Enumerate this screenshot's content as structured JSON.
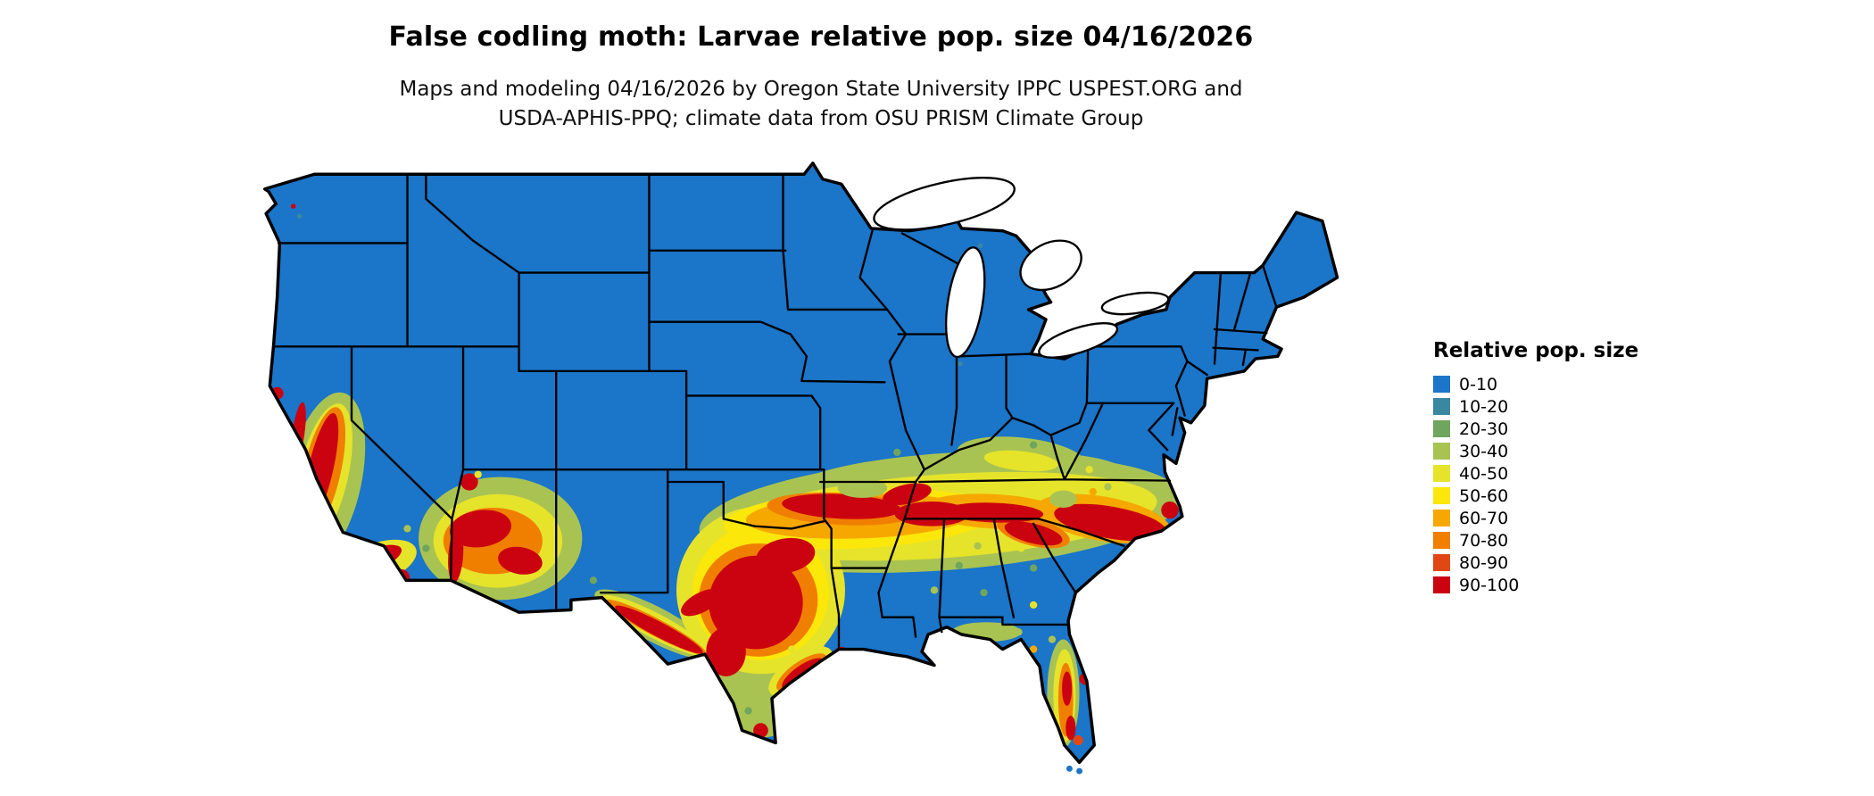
{
  "title": "False codling moth: Larvae relative pop. size 04/16/2026",
  "subtitle_line1": "Maps and modeling 04/16/2026 by Oregon State University IPPC USPEST.ORG and",
  "subtitle_line2": "USDA-APHIS-PPQ; climate data from OSU PRISM Climate Group",
  "legend": {
    "title": "Relative pop. size",
    "items": [
      {
        "label": "0-10",
        "color": "#1B75C8"
      },
      {
        "label": "10-20",
        "color": "#3A87A0"
      },
      {
        "label": "20-30",
        "color": "#6FA55E"
      },
      {
        "label": "30-40",
        "color": "#A9C352"
      },
      {
        "label": "40-50",
        "color": "#E6E32B"
      },
      {
        "label": "50-60",
        "color": "#FBE70A"
      },
      {
        "label": "60-70",
        "color": "#F6A800"
      },
      {
        "label": "70-80",
        "color": "#F07F00"
      },
      {
        "label": "80-90",
        "color": "#E04713"
      },
      {
        "label": "90-100",
        "color": "#CB0310"
      }
    ]
  },
  "map": {
    "region": "Continental United States with state borders",
    "water_color": "#FFFFFF",
    "border_color": "#000000",
    "low_value_color": "#1B75C8",
    "high_value_areas": "California valley and coast, Arizona, Rio Grande, central Texas, band from Oklahoma through Arkansas and Tennessee to the Carolinas, central Florida"
  }
}
